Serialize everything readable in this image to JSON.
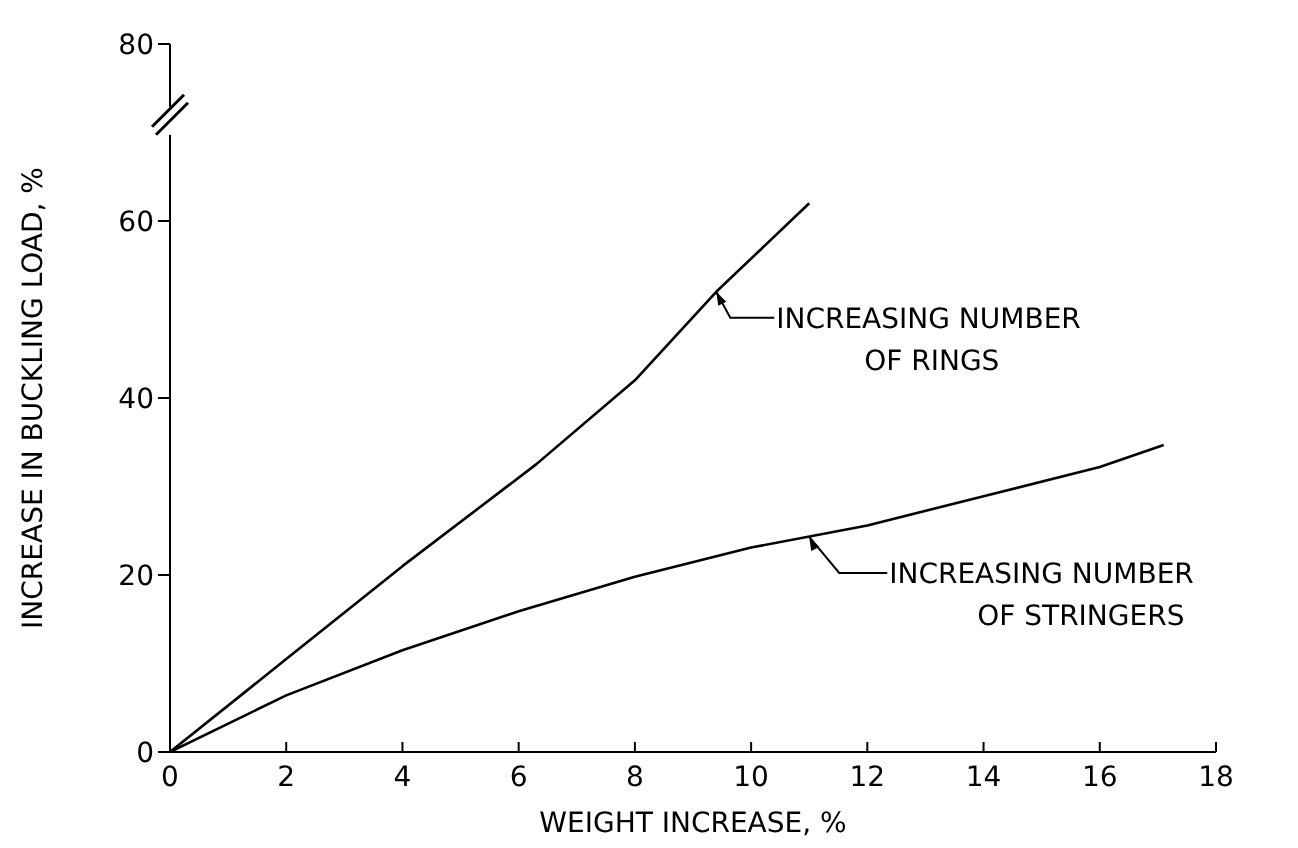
{
  "chart_data": {
    "type": "line",
    "xlabel": "WEIGHT INCREASE, %",
    "ylabel": "INCREASE IN BUCKLING LOAD, %",
    "xlim": [
      0,
      18
    ],
    "xticks": [
      0,
      2,
      4,
      6,
      8,
      10,
      12,
      14,
      16,
      18
    ],
    "ylim": [
      0,
      80
    ],
    "yticks": [
      0,
      20,
      40,
      60,
      80
    ],
    "grid": false,
    "legend": false,
    "marker": "none",
    "line_style": "solid",
    "series": [
      {
        "color": "#000000",
        "x": [
          0,
          2,
          4,
          6.3,
          8,
          9.4,
          11
        ],
        "values": [
          0,
          10.5,
          21,
          32.5,
          42,
          52,
          62
        ]
      },
      {
        "color": "#000000",
        "x": [
          0,
          2,
          4,
          6,
          8,
          10,
          12,
          14,
          16,
          17.1
        ],
        "values": [
          0,
          6.4,
          11.5,
          15.9,
          19.8,
          23.1,
          25.6,
          28.9,
          32.2,
          34.7
        ]
      }
    ],
    "annotations": [
      {
        "text": "INCREASING NUMBER\nOF RINGS",
        "x": 9.4,
        "y": 52
      },
      {
        "text": "INCREASING NUMBER\nOF STRINGERS",
        "x": 11,
        "y": 24.3
      }
    ]
  }
}
